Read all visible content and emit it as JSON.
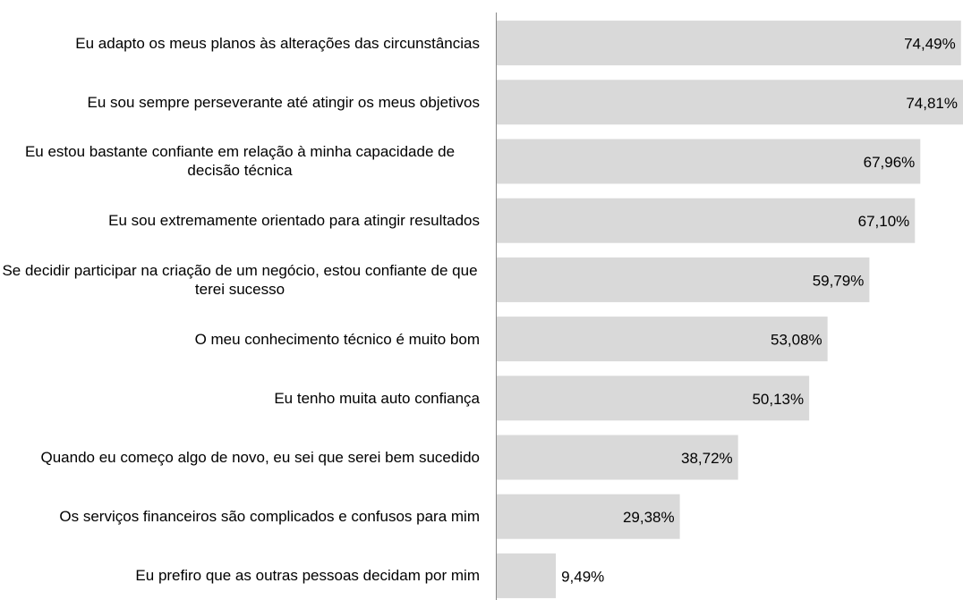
{
  "chart_data": {
    "type": "bar",
    "orientation": "horizontal",
    "categories": [
      "Eu adapto os meus planos às alterações das circunstâncias",
      "Eu sou sempre perseverante até atingir os meus objetivos",
      "Eu estou bastante confiante em relação à minha capacidade de decisão técnica",
      "Eu sou extremamente orientado para atingir resultados",
      "Se decidir participar na criação de um negócio, estou confiante de que terei sucesso",
      "O meu conhecimento técnico é muito bom",
      "Eu tenho muita auto confiança",
      "Quando eu começo algo de novo, eu sei que serei bem sucedido",
      "Os serviços financeiros são complicados e confusos para mim",
      "Eu prefiro que as outras pessoas decidam por mim"
    ],
    "values": [
      74.49,
      74.81,
      67.96,
      67.1,
      59.79,
      53.08,
      50.13,
      38.72,
      29.38,
      9.49
    ],
    "value_labels": [
      "74,49%",
      "74,81%",
      "67,96%",
      "67,10%",
      "59,79%",
      "53,08%",
      "50,13%",
      "38,72%",
      "29,38%",
      "9,49%"
    ],
    "color": "#d9d9d9"
  }
}
